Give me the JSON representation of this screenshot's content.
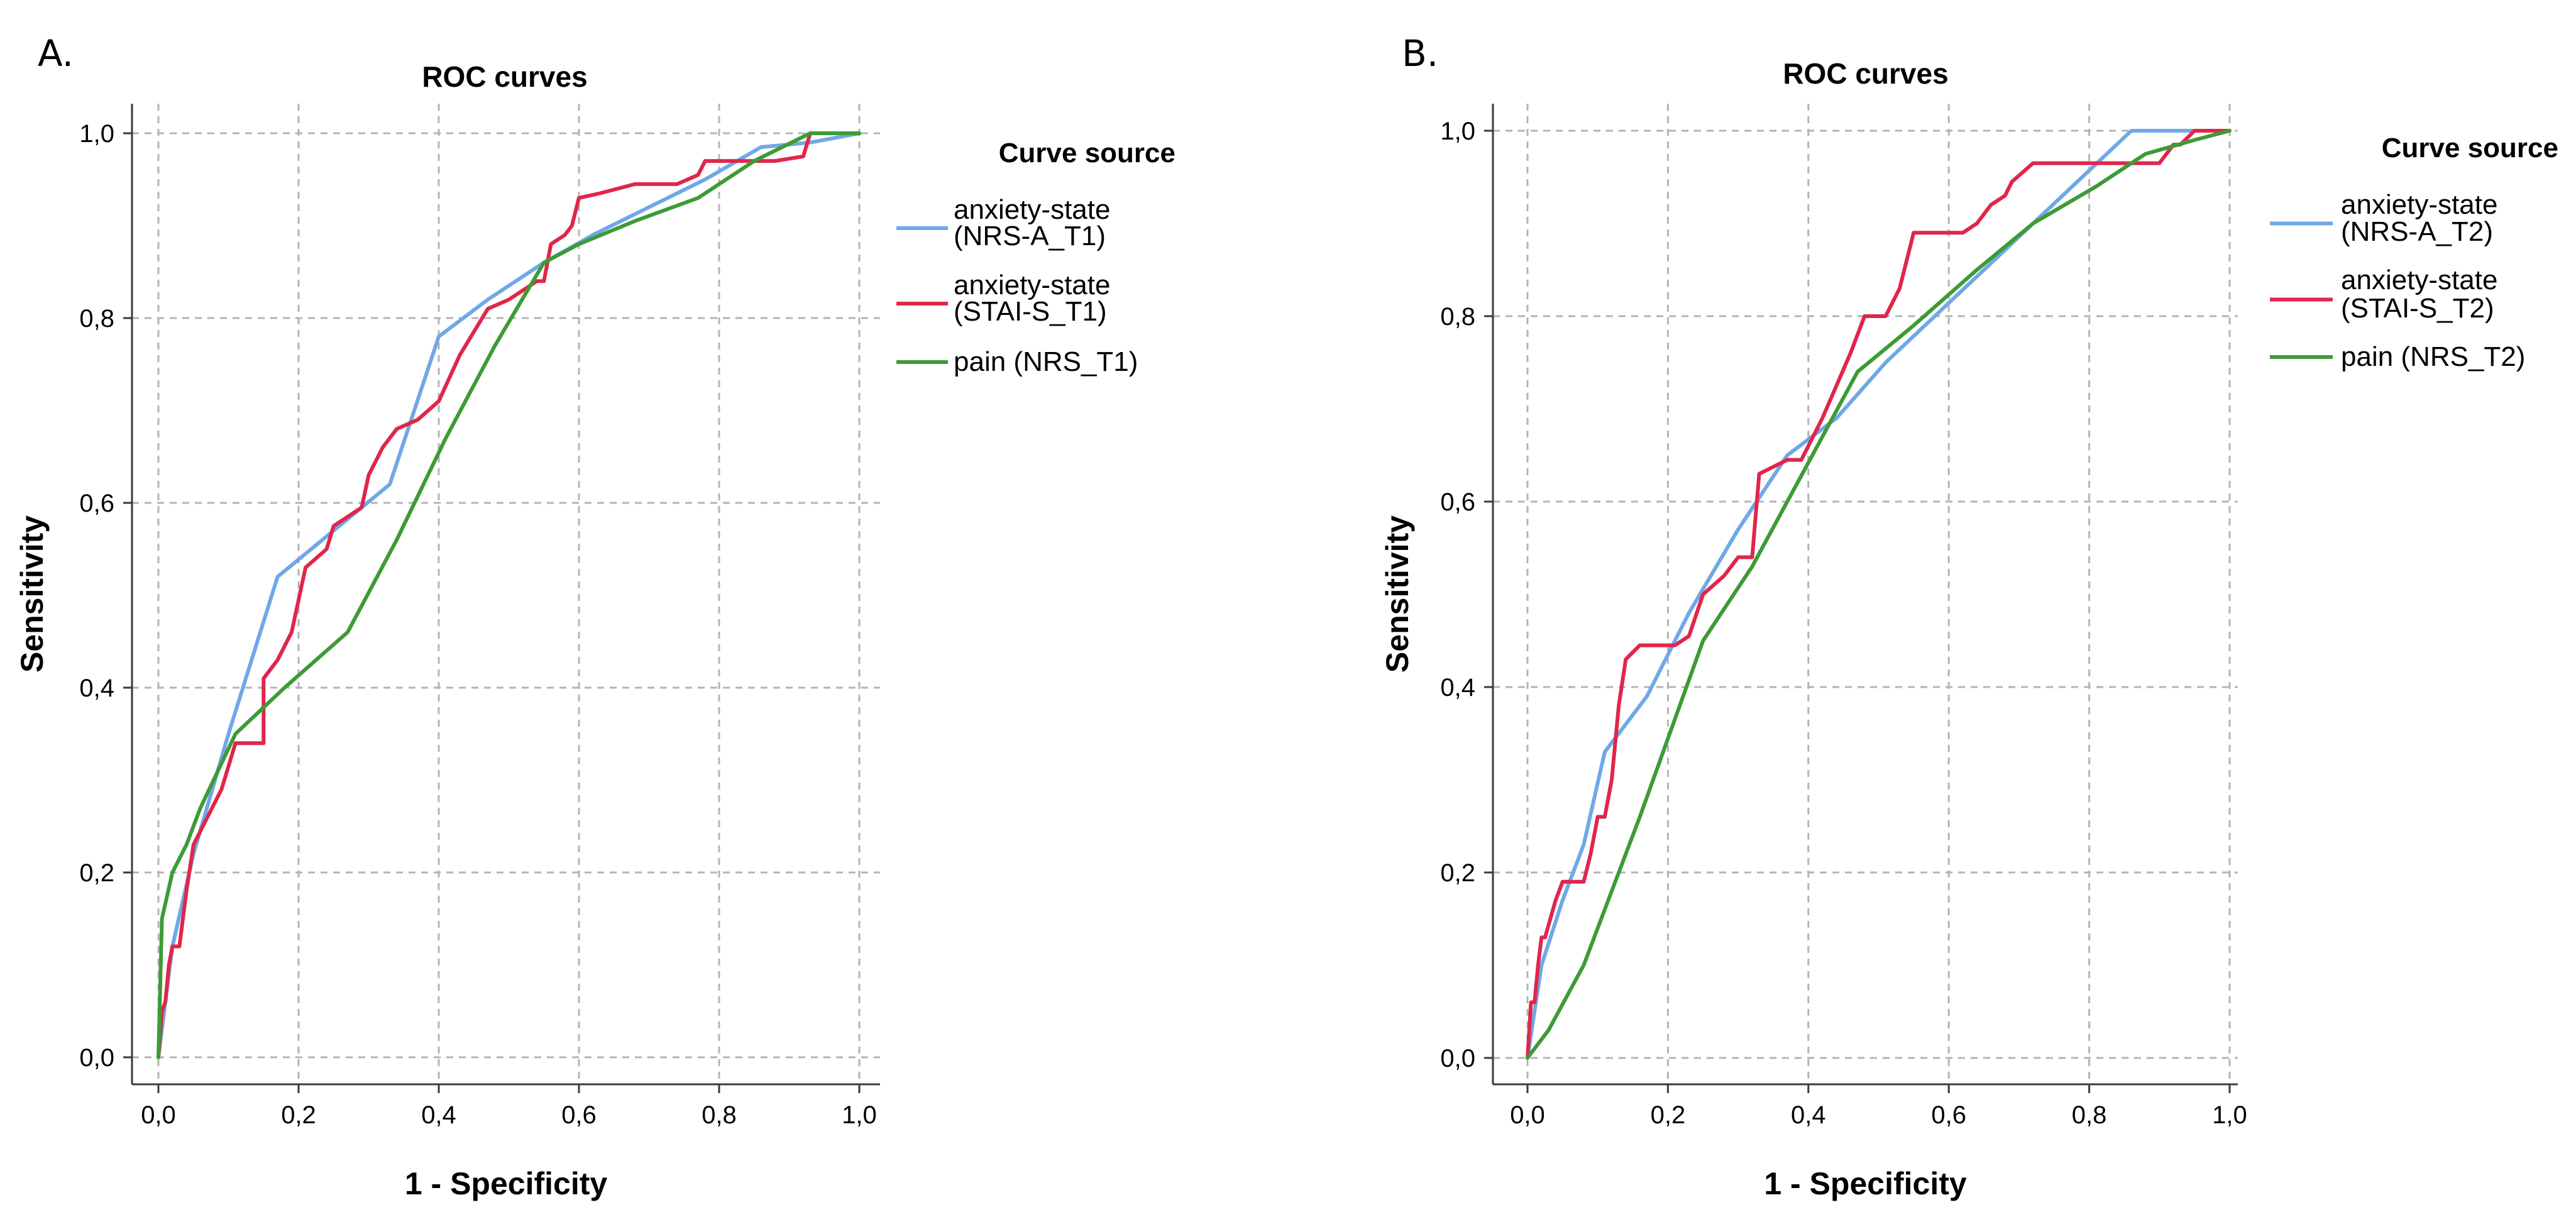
{
  "chart_data": [
    {
      "panel_label": "A.",
      "type": "line",
      "title": "ROC curves",
      "xlabel": "1 - Specificity",
      "ylabel": "Sensitivity",
      "xlim": [
        0,
        1
      ],
      "ylim": [
        0,
        1
      ],
      "xticks": [
        "0,0",
        "0,2",
        "0,4",
        "0,6",
        "0,8",
        "1,0"
      ],
      "yticks": [
        "0,0",
        "0,2",
        "0,4",
        "0,6",
        "0,8",
        "1,0"
      ],
      "grid": true,
      "legend_title": "Curve source",
      "legend_position": "right",
      "series": [
        {
          "name": "anxiety-state (NRS-A_T1)",
          "legend_lines": [
            "anxiety-state",
            "(NRS-A_T1)"
          ],
          "color": "#6fa8e6",
          "x": [
            0,
            0.01,
            0.02,
            0.05,
            0.1,
            0.17,
            0.25,
            0.33,
            0.4,
            0.47,
            0.55,
            0.62,
            0.7,
            0.78,
            0.86,
            0.93,
            1.0
          ],
          "y": [
            0,
            0.06,
            0.12,
            0.22,
            0.35,
            0.52,
            0.57,
            0.62,
            0.78,
            0.82,
            0.86,
            0.89,
            0.92,
            0.95,
            0.985,
            0.99,
            1.0
          ]
        },
        {
          "name": "anxiety-state (STAI-S_T1)",
          "legend_lines": [
            "anxiety-state",
            "(STAI-S_T1)"
          ],
          "color": "#e0264a",
          "x": [
            0,
            0.005,
            0.01,
            0.015,
            0.02,
            0.03,
            0.04,
            0.05,
            0.07,
            0.09,
            0.11,
            0.15,
            0.15,
            0.17,
            0.19,
            0.21,
            0.24,
            0.25,
            0.27,
            0.29,
            0.3,
            0.32,
            0.34,
            0.37,
            0.4,
            0.43,
            0.47,
            0.5,
            0.54,
            0.55,
            0.56,
            0.58,
            0.59,
            0.6,
            0.63,
            0.68,
            0.74,
            0.77,
            0.78,
            0.82,
            0.88,
            0.92,
            0.93,
            0.95,
            1.0
          ],
          "y": [
            0,
            0.05,
            0.06,
            0.1,
            0.12,
            0.12,
            0.18,
            0.23,
            0.26,
            0.29,
            0.34,
            0.34,
            0.41,
            0.43,
            0.46,
            0.53,
            0.55,
            0.575,
            0.585,
            0.595,
            0.63,
            0.66,
            0.68,
            0.69,
            0.71,
            0.76,
            0.81,
            0.82,
            0.84,
            0.84,
            0.88,
            0.89,
            0.9,
            0.93,
            0.935,
            0.945,
            0.945,
            0.955,
            0.97,
            0.97,
            0.97,
            0.975,
            1.0,
            1.0,
            1.0
          ]
        },
        {
          "name": "pain (NRS_T1)",
          "legend_lines": [
            "pain (NRS_T1)"
          ],
          "color": "#3d9b35",
          "x": [
            0,
            0.005,
            0.02,
            0.04,
            0.06,
            0.11,
            0.18,
            0.27,
            0.34,
            0.41,
            0.48,
            0.55,
            0.6,
            0.68,
            0.77,
            0.85,
            0.93,
            1.0
          ],
          "y": [
            0,
            0.15,
            0.2,
            0.23,
            0.27,
            0.35,
            0.4,
            0.46,
            0.56,
            0.67,
            0.77,
            0.86,
            0.88,
            0.905,
            0.93,
            0.97,
            1.0,
            1.0
          ]
        }
      ]
    },
    {
      "panel_label": "B.",
      "type": "line",
      "title": "ROC curves",
      "xlabel": "1 - Specificity",
      "ylabel": "Sensitivity",
      "xlim": [
        0,
        1
      ],
      "ylim": [
        0,
        1
      ],
      "xticks": [
        "0,0",
        "0,2",
        "0,4",
        "0,6",
        "0,8",
        "1,0"
      ],
      "yticks": [
        "0,0",
        "0,2",
        "0,4",
        "0,6",
        "0,8",
        "1,0"
      ],
      "grid": true,
      "legend_title": "Curve source",
      "legend_position": "right",
      "series": [
        {
          "name": "anxiety-state (NRS-A_T2)",
          "legend_lines": [
            "anxiety-state",
            "(NRS-A_T2)"
          ],
          "color": "#6fa8e6",
          "x": [
            0,
            0.02,
            0.05,
            0.08,
            0.11,
            0.17,
            0.23,
            0.3,
            0.37,
            0.44,
            0.51,
            0.58,
            0.65,
            0.72,
            0.79,
            0.86,
            0.93,
            1.0
          ],
          "y": [
            0,
            0.1,
            0.17,
            0.23,
            0.33,
            0.39,
            0.48,
            0.57,
            0.65,
            0.69,
            0.75,
            0.8,
            0.85,
            0.9,
            0.95,
            1.0,
            1.0,
            1.0
          ]
        },
        {
          "name": "anxiety-state (STAI-S_T2)",
          "legend_lines": [
            "anxiety-state",
            "(STAI-S_T2)"
          ],
          "color": "#e0264a",
          "x": [
            0,
            0.005,
            0.01,
            0.015,
            0.02,
            0.025,
            0.04,
            0.05,
            0.06,
            0.08,
            0.09,
            0.1,
            0.11,
            0.12,
            0.13,
            0.14,
            0.16,
            0.18,
            0.21,
            0.23,
            0.25,
            0.28,
            0.3,
            0.32,
            0.33,
            0.37,
            0.39,
            0.42,
            0.46,
            0.48,
            0.51,
            0.53,
            0.55,
            0.6,
            0.62,
            0.64,
            0.66,
            0.68,
            0.69,
            0.72,
            0.75,
            0.8,
            0.87,
            0.9,
            0.92,
            0.93,
            0.95,
            1.0
          ],
          "y": [
            0,
            0.06,
            0.06,
            0.1,
            0.13,
            0.13,
            0.17,
            0.19,
            0.19,
            0.19,
            0.22,
            0.26,
            0.26,
            0.3,
            0.38,
            0.43,
            0.445,
            0.445,
            0.445,
            0.455,
            0.5,
            0.52,
            0.54,
            0.54,
            0.63,
            0.645,
            0.645,
            0.69,
            0.76,
            0.8,
            0.8,
            0.83,
            0.89,
            0.89,
            0.89,
            0.9,
            0.92,
            0.93,
            0.945,
            0.965,
            0.965,
            0.965,
            0.965,
            0.965,
            0.985,
            0.985,
            1.0,
            1.0
          ]
        },
        {
          "name": "pain (NRS_T2)",
          "legend_lines": [
            "pain (NRS_T2)"
          ],
          "color": "#3d9b35",
          "x": [
            0,
            0.03,
            0.08,
            0.16,
            0.25,
            0.32,
            0.47,
            0.55,
            0.64,
            0.72,
            0.81,
            0.88,
            0.95,
            1.0
          ],
          "y": [
            0,
            0.03,
            0.1,
            0.26,
            0.45,
            0.53,
            0.74,
            0.79,
            0.85,
            0.9,
            0.94,
            0.975,
            0.99,
            1.0
          ]
        }
      ]
    }
  ]
}
